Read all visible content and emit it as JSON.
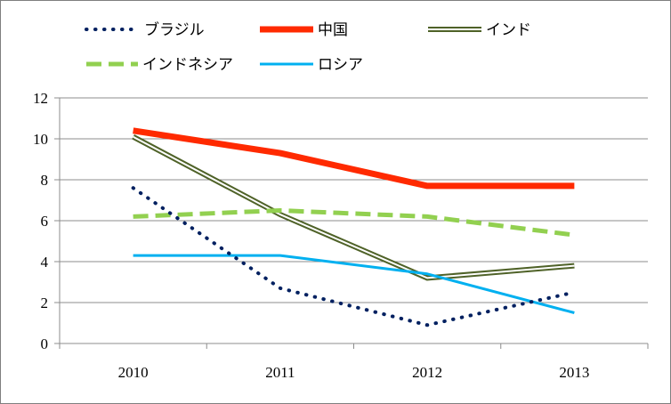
{
  "chart_data": {
    "type": "line",
    "title": "",
    "xlabel": "",
    "ylabel": "",
    "categories": [
      "2010",
      "2011",
      "2012",
      "2013"
    ],
    "ylim": [
      0,
      12
    ],
    "yticks": [
      0,
      2,
      4,
      6,
      8,
      10,
      12
    ],
    "grid": true,
    "legend_position": "top",
    "series": [
      {
        "name": "ブラジル",
        "values": [
          7.6,
          2.7,
          0.9,
          2.5
        ],
        "color": "#002060",
        "style": "dotted",
        "key": "brazil"
      },
      {
        "name": "中国",
        "values": [
          10.4,
          9.3,
          7.7,
          7.7
        ],
        "color": "#ff2a00",
        "style": "thick",
        "key": "china"
      },
      {
        "name": "インド",
        "values": [
          10.1,
          6.3,
          3.2,
          3.8
        ],
        "color": "#4f6228",
        "style": "double",
        "key": "india"
      },
      {
        "name": "インドネシア",
        "values": [
          6.2,
          6.5,
          6.2,
          5.3
        ],
        "color": "#92d050",
        "style": "dashed",
        "key": "indonesia"
      },
      {
        "name": "ロシア",
        "values": [
          4.3,
          4.3,
          3.4,
          1.5
        ],
        "color": "#00b0f0",
        "style": "solid",
        "key": "russia"
      }
    ]
  }
}
